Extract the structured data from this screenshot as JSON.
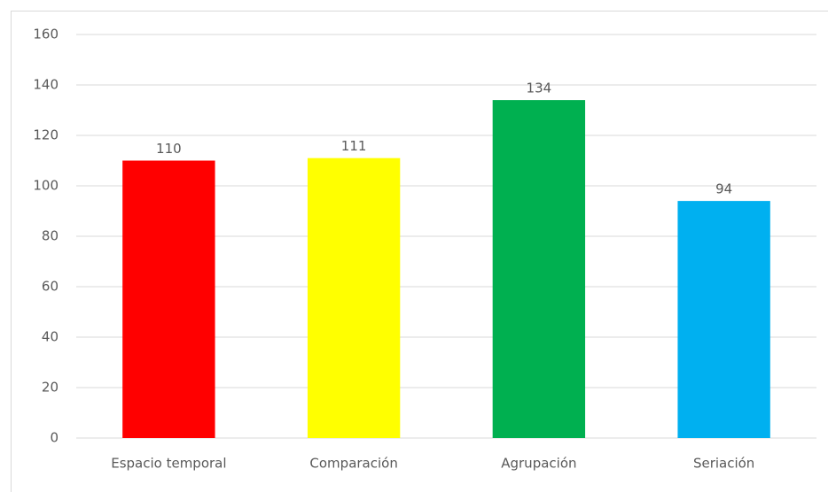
{
  "chart_data": {
    "type": "bar",
    "categories": [
      "Espacio temporal",
      "Comparación",
      "Agrupación",
      "Seriación"
    ],
    "values": [
      110,
      111,
      134,
      94
    ],
    "colors": [
      "#ff0000",
      "#ffff00",
      "#00b050",
      "#00b0f0"
    ],
    "ylim": [
      0,
      160
    ],
    "yticks": [
      0,
      20,
      40,
      60,
      80,
      100,
      120,
      140,
      160
    ],
    "grid": true
  }
}
